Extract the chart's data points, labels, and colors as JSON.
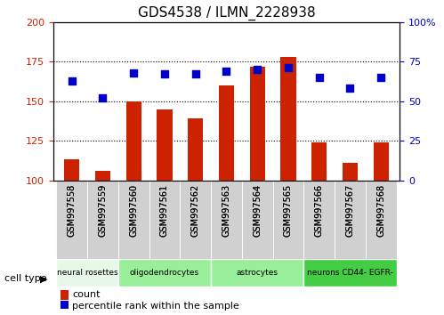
{
  "title": "GDS4538 / ILMN_2228938",
  "samples": [
    "GSM997558",
    "GSM997559",
    "GSM997560",
    "GSM997561",
    "GSM997562",
    "GSM997563",
    "GSM997564",
    "GSM997565",
    "GSM997566",
    "GSM997567",
    "GSM997568"
  ],
  "bar_values": [
    113,
    106,
    150,
    145,
    139,
    160,
    172,
    178,
    124,
    111,
    124
  ],
  "dot_values": [
    63,
    52,
    68,
    67,
    67,
    69,
    70,
    71,
    65,
    58,
    65
  ],
  "ylim_left": [
    100,
    200
  ],
  "ylim_right": [
    0,
    100
  ],
  "yticks_left": [
    100,
    125,
    150,
    175,
    200
  ],
  "yticks_right": [
    0,
    25,
    50,
    75,
    100
  ],
  "bar_color": "#cc2200",
  "dot_color": "#0000cc",
  "cell_types": [
    {
      "label": "neural rosettes",
      "start": 0,
      "end": 2,
      "color": "#e8f8e8"
    },
    {
      "label": "oligodendrocytes",
      "start": 2,
      "end": 5,
      "color": "#99ee99"
    },
    {
      "label": "astrocytes",
      "start": 5,
      "end": 8,
      "color": "#99ee99"
    },
    {
      "label": "neurons CD44- EGFR-",
      "start": 8,
      "end": 11,
      "color": "#44cc44"
    }
  ],
  "tick_bg_color": "#d0d0d0",
  "grid_color": "#000000",
  "legend_count_color": "#cc2200",
  "legend_pct_color": "#0000cc"
}
